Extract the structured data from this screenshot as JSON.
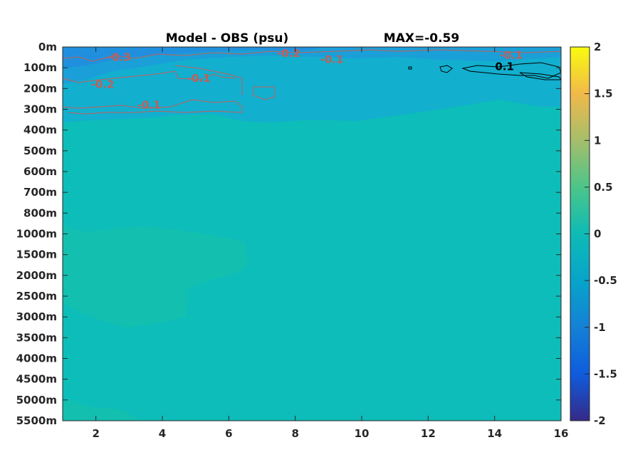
{
  "chart_data": {
    "type": "heatmap",
    "title": "Model - OBS (psu)",
    "annotation": "MAX=-0.59",
    "xlabel": "",
    "ylabel": "",
    "xlim": [
      1,
      16
    ],
    "x_ticks": [
      "2",
      "4",
      "6",
      "8",
      "10",
      "12",
      "14",
      "16"
    ],
    "x_tick_values": [
      2,
      4,
      6,
      8,
      10,
      12,
      14,
      16
    ],
    "y_ticks": [
      "0m",
      "100m",
      "200m",
      "300m",
      "400m",
      "500m",
      "600m",
      "700m",
      "800m",
      "1000m",
      "1500m",
      "2000m",
      "2500m",
      "3000m",
      "3500m",
      "4000m",
      "4500m",
      "5000m",
      "5500m"
    ],
    "y_reversed": true,
    "colorbar": {
      "ticks": [
        "2",
        "1.5",
        "1",
        "0.5",
        "0",
        "-0.5",
        "-1",
        "-1.5",
        "-2"
      ],
      "tick_values": [
        2,
        1.5,
        1,
        0.5,
        0,
        -0.5,
        -1,
        -1.5,
        -2
      ],
      "range": [
        -2,
        2
      ],
      "colormap": "parula"
    },
    "contour_labels": [
      {
        "text": "-0.3",
        "x": 2.7,
        "depth": "50m",
        "color": "#c0605a"
      },
      {
        "text": "-0.2",
        "x": 7.8,
        "depth": "30m",
        "color": "#c0605a"
      },
      {
        "text": "-0.1",
        "x": 9.1,
        "depth": "60m",
        "color": "#c0605a"
      },
      {
        "text": "-0.1",
        "x": 14.5,
        "depth": "40m",
        "color": "#c0605a"
      },
      {
        "text": "-0.1",
        "x": 5.1,
        "depth": "150m",
        "color": "#c0605a"
      },
      {
        "text": "-0.2",
        "x": 2.2,
        "depth": "180m",
        "color": "#c0605a"
      },
      {
        "text": "-0.1",
        "x": 3.6,
        "depth": "280m",
        "color": "#c0605a"
      },
      {
        "text": "0.1",
        "x": 14.3,
        "depth": "95m",
        "color": "#000000"
      }
    ],
    "colors": {
      "background_field": "#0dbdb9",
      "upper_negative": "#18a8d4",
      "upper_negative_deep": "#1d94dc",
      "deep_positive": "#2abda4",
      "negative_contour": "#c0605a",
      "positive_contour": "#000000"
    }
  }
}
